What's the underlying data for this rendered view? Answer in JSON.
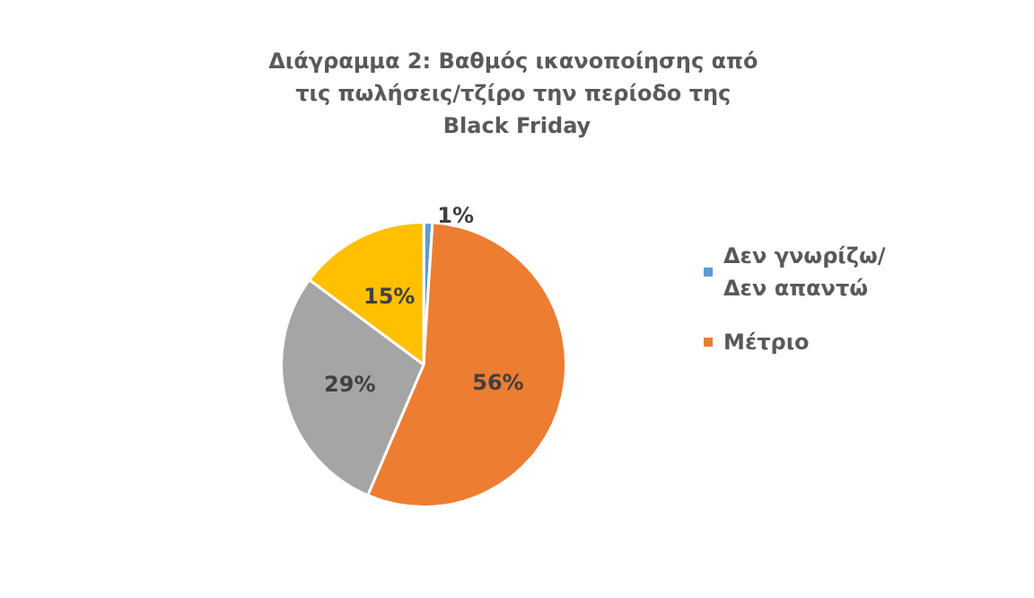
{
  "chart_data": {
    "type": "pie",
    "title": "Διάγραμμα 2: Βαθμός ικανοποίησης από τις πωλήσεις/τζίρο την περίοδο της Black Friday",
    "categories": [
      "Δεν γνωρίζω/Δεν απαντώ",
      "Μέτριο",
      null,
      null
    ],
    "values": [
      1,
      56,
      29,
      15
    ],
    "colors": [
      "#5b9bd5",
      "#ed7d31",
      "#a5a5a5",
      "#ffc000"
    ],
    "value_labels": [
      "1%",
      "56%",
      "29%",
      "15%"
    ],
    "legend": "right"
  }
}
